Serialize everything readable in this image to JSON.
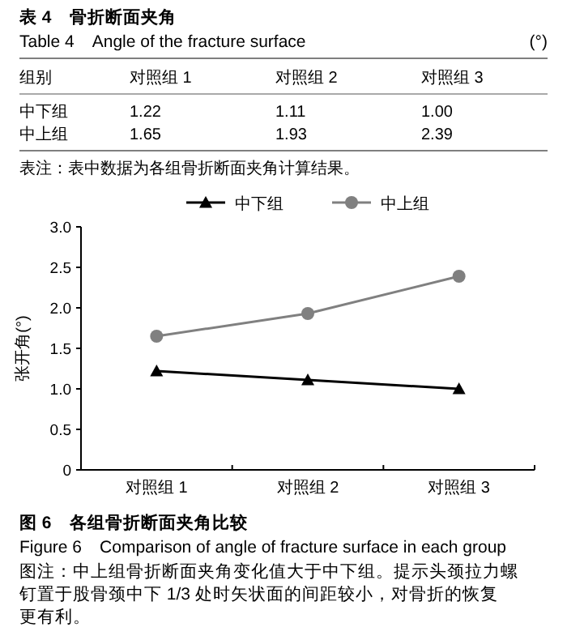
{
  "chart_data": {
    "type": "line",
    "title": "图 6　各组骨折断面夹角比较",
    "subtitle": "Figure 6　Comparison of angle of fracture surface in each group",
    "ylabel": "张开角(°)",
    "categories": [
      "对照组 1",
      "对照组 2",
      "对照组 3"
    ],
    "series": [
      {
        "name": "中下组",
        "color": "#000000",
        "marker": "triangle",
        "values": [
          1.22,
          1.11,
          1.0
        ],
        "value_labels": [
          "1.22",
          "1.11",
          "1.00"
        ]
      },
      {
        "name": "中上组",
        "color": "#808080",
        "marker": "circle",
        "values": [
          1.65,
          1.93,
          2.39
        ],
        "value_labels": [
          "1.65",
          "1.93",
          "2.39"
        ]
      }
    ],
    "ylim": [
      0,
      3
    ],
    "yticks": [
      0,
      0.5,
      {
        "value": 1,
        "label": "1.0"
      },
      1.5,
      {
        "value": 2,
        "label": "2.0"
      },
      2.5,
      {
        "value": 3,
        "label": "3.0"
      }
    ],
    "legend": "top",
    "line_style": "solid",
    "annotations": [
      "表 4　骨折断面夹角",
      "Table 4　Angle of the fracture surface",
      "(°)",
      "组别",
      "表注：表中数据为各组骨折断面夹角计算结果。",
      "图注：中上组骨折断面夹角变化值大于中下组。提示头颈拉力螺钉置于股骨颈中下 1/3 处时矢状面的间距较小，对骨折的恢复更有利。"
    ]
  }
}
